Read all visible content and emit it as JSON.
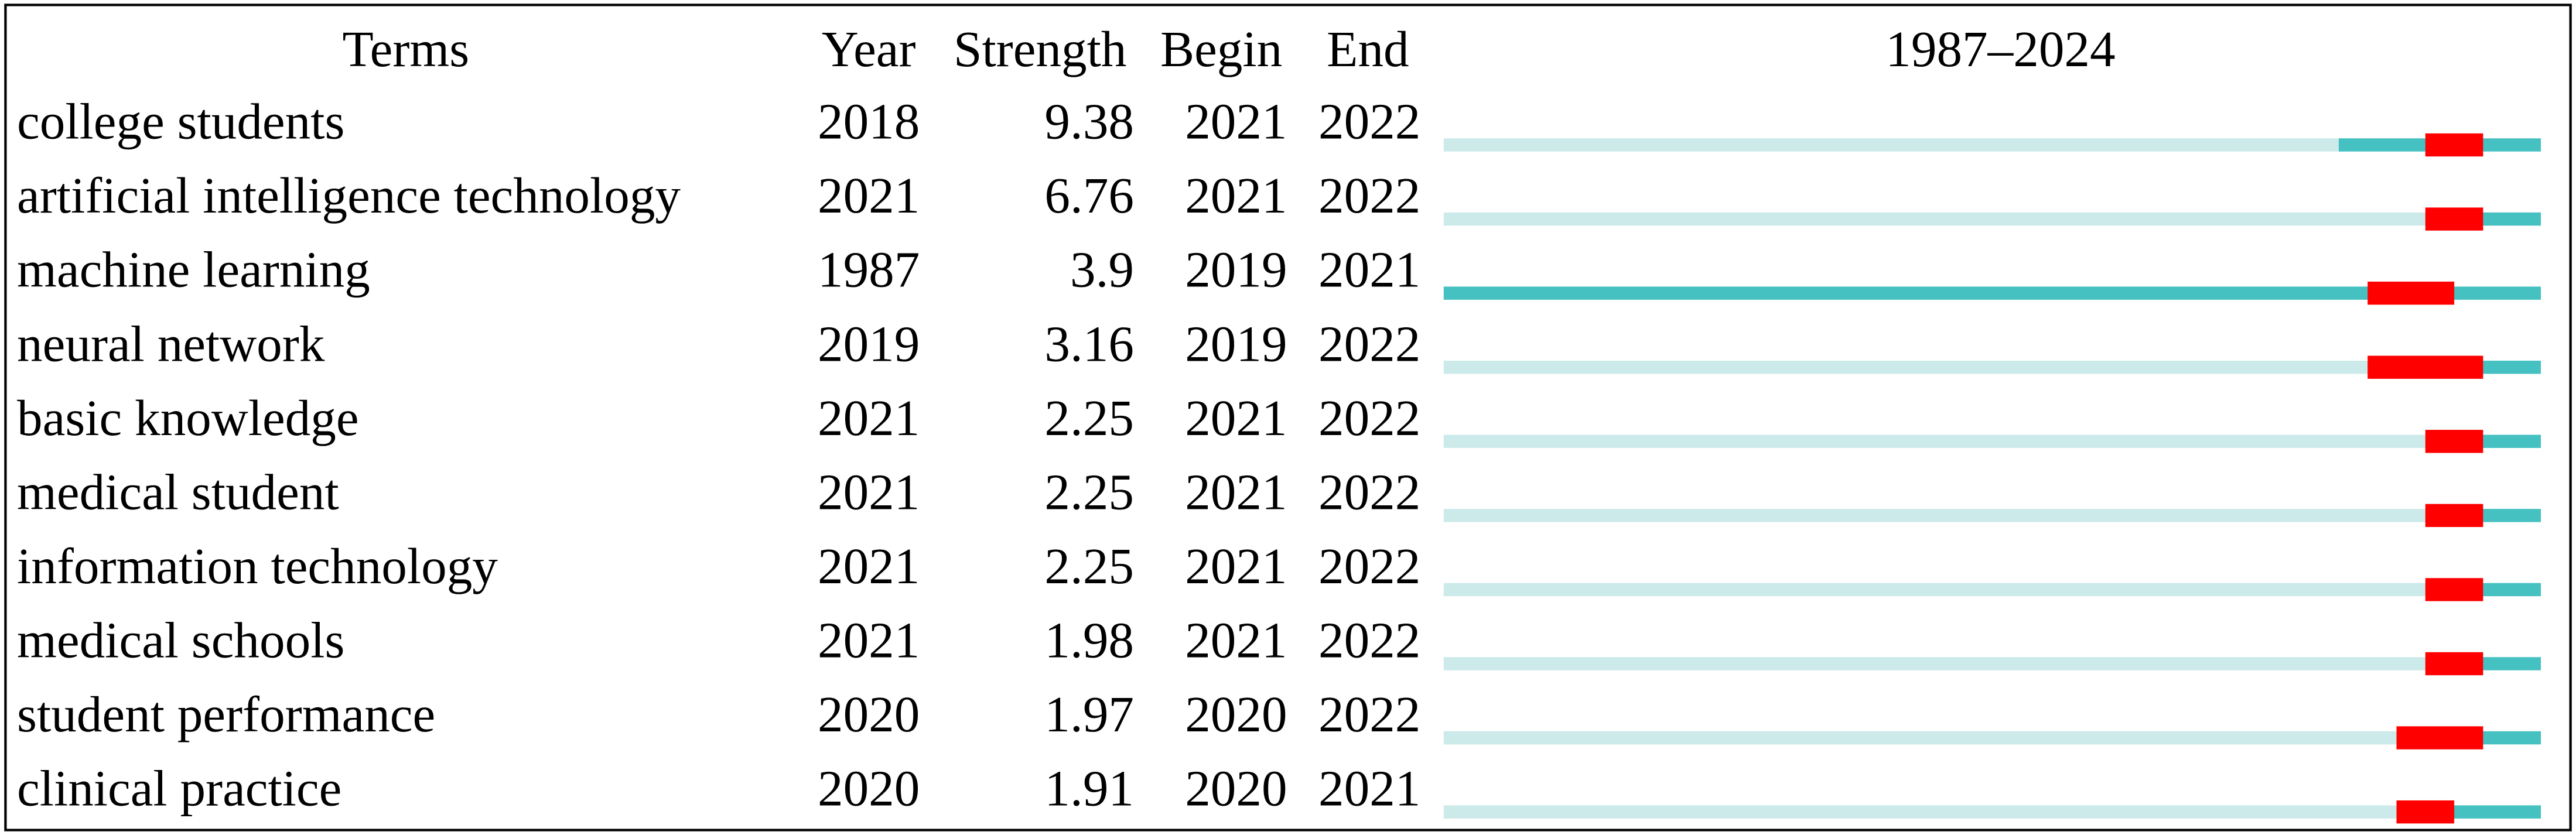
{
  "headers": {
    "terms": "Terms",
    "year": "Year",
    "strength": "Strength",
    "begin": "Begin",
    "end": "End"
  },
  "timeline": {
    "label": "1987–2024",
    "start": 1987,
    "end": 2024,
    "colors": {
      "before": "#cdeaea",
      "active": "#45c1c1",
      "burst": "#ff0000"
    }
  },
  "rows": [
    {
      "term": "college students",
      "year": 2018,
      "strength": 9.38,
      "begin": 2021,
      "end": 2022
    },
    {
      "term": "artificial intelligence technology",
      "year": 2021,
      "strength": 6.76,
      "begin": 2021,
      "end": 2022
    },
    {
      "term": "machine learning",
      "year": 1987,
      "strength": 3.9,
      "begin": 2019,
      "end": 2021
    },
    {
      "term": "neural network",
      "year": 2019,
      "strength": 3.16,
      "begin": 2019,
      "end": 2022
    },
    {
      "term": "basic knowledge",
      "year": 2021,
      "strength": 2.25,
      "begin": 2021,
      "end": 2022
    },
    {
      "term": "medical student",
      "year": 2021,
      "strength": 2.25,
      "begin": 2021,
      "end": 2022
    },
    {
      "term": "information technology",
      "year": 2021,
      "strength": 2.25,
      "begin": 2021,
      "end": 2022
    },
    {
      "term": "medical schools",
      "year": 2021,
      "strength": 1.98,
      "begin": 2021,
      "end": 2022
    },
    {
      "term": "student performance",
      "year": 2020,
      "strength": 1.97,
      "begin": 2020,
      "end": 2022
    },
    {
      "term": "clinical practice",
      "year": 2020,
      "strength": 1.91,
      "begin": 2020,
      "end": 2021
    }
  ]
}
